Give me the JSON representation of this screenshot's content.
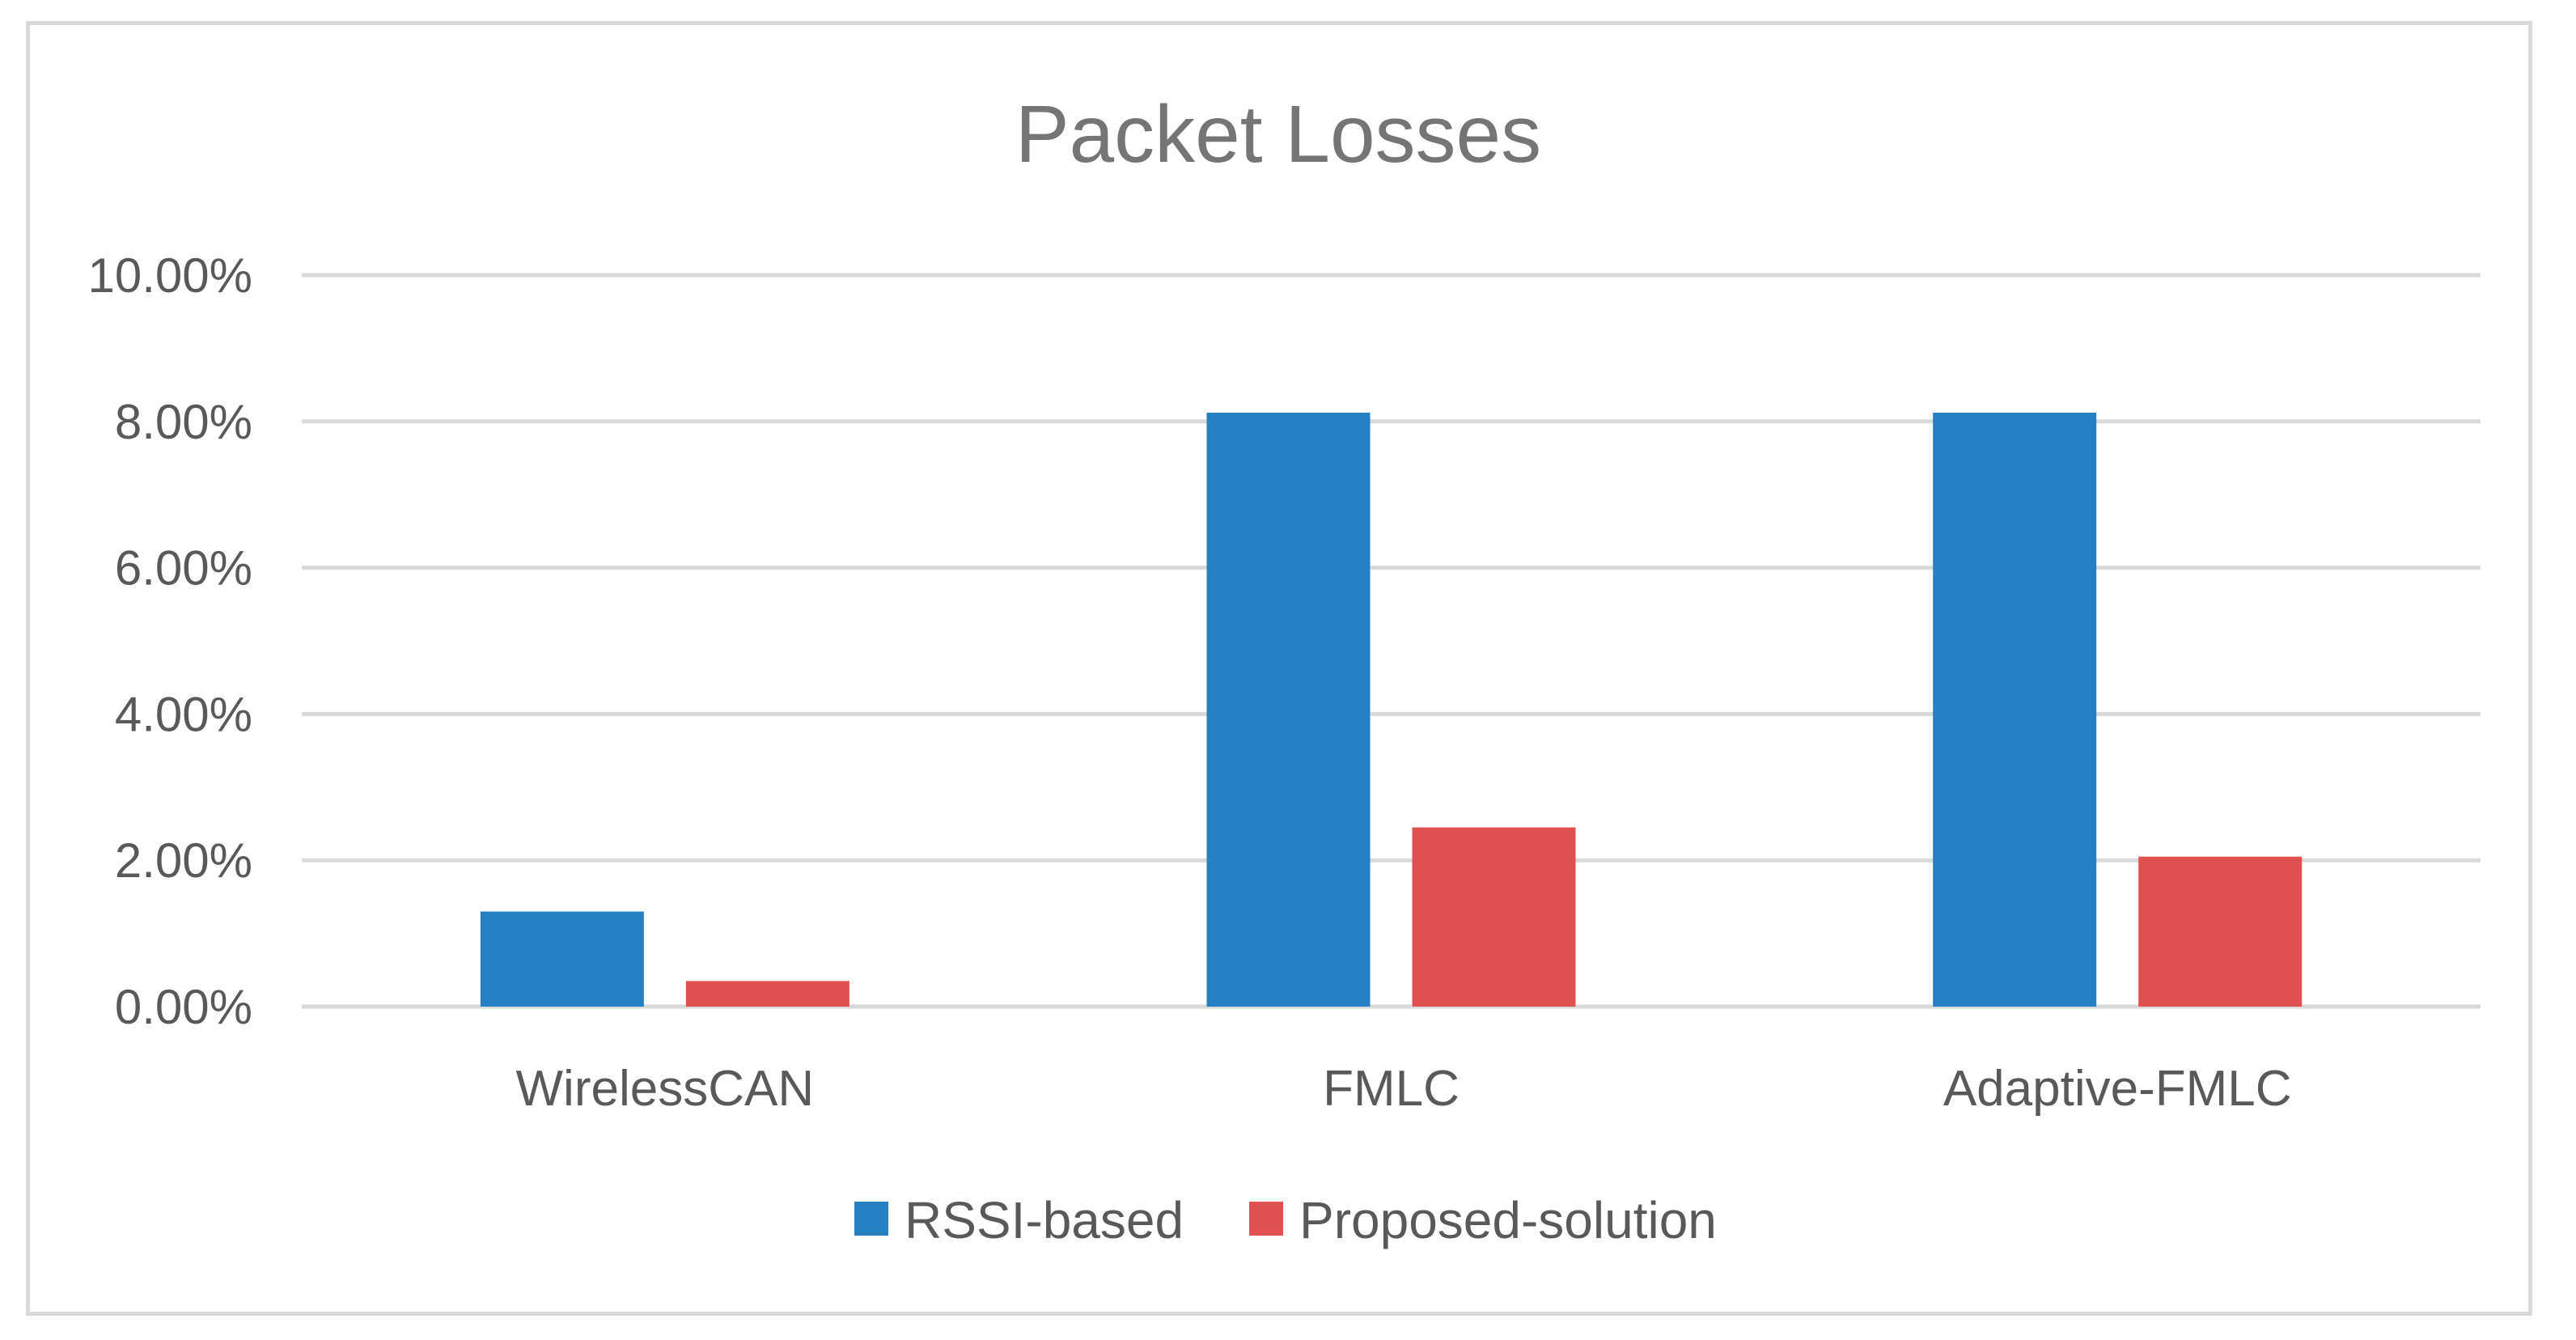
{
  "chart_data": {
    "type": "bar",
    "title": "Packet Losses",
    "xlabel": "",
    "ylabel": "",
    "categories": [
      "WirelessCAN",
      "FMLC",
      "Adaptive-FMLC"
    ],
    "series": [
      {
        "name": "RSSI-based",
        "color": "#2580c1",
        "values": [
          1.3,
          8.12,
          8.12
        ]
      },
      {
        "name": "Proposed-solution",
        "color": "#e05050",
        "values": [
          0.35,
          2.45,
          2.05
        ]
      }
    ],
    "ylim": [
      0,
      10
    ],
    "yticks": [
      0,
      2,
      4,
      6,
      8,
      10
    ],
    "ytick_labels": [
      "0.00%",
      "2.00%",
      "4.00%",
      "6.00%",
      "8.00%",
      "10.00%"
    ],
    "grid": true,
    "legend_position": "bottom"
  }
}
